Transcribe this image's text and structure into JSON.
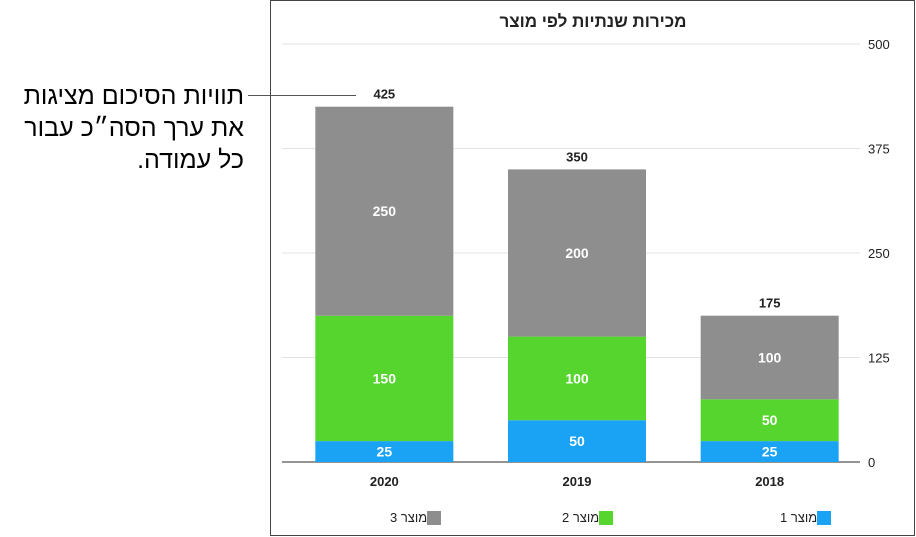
{
  "annotation": {
    "text": "תוויות הסיכום מציגות את ערך הסה״כ עבור כל עמודה."
  },
  "chart_data": {
    "type": "bar",
    "stacked": true,
    "title": "מכירות שנתיות לפי מוצר",
    "categories": [
      "2020",
      "2019",
      "2018"
    ],
    "series": [
      {
        "name": "מוצר 1",
        "values": [
          25,
          50,
          25
        ],
        "color": "#1aa3f5"
      },
      {
        "name": "מוצר 2",
        "values": [
          150,
          100,
          50
        ],
        "color": "#55d52e"
      },
      {
        "name": "מוצר 3",
        "values": [
          250,
          200,
          100
        ],
        "color": "#8e8e8e"
      }
    ],
    "totals": [
      425,
      350,
      175
    ],
    "ylim": [
      0,
      500
    ],
    "yticks": [
      0,
      125,
      250,
      375,
      500
    ],
    "y_axis_side": "right",
    "grid": true,
    "legend_position": "bottom"
  }
}
